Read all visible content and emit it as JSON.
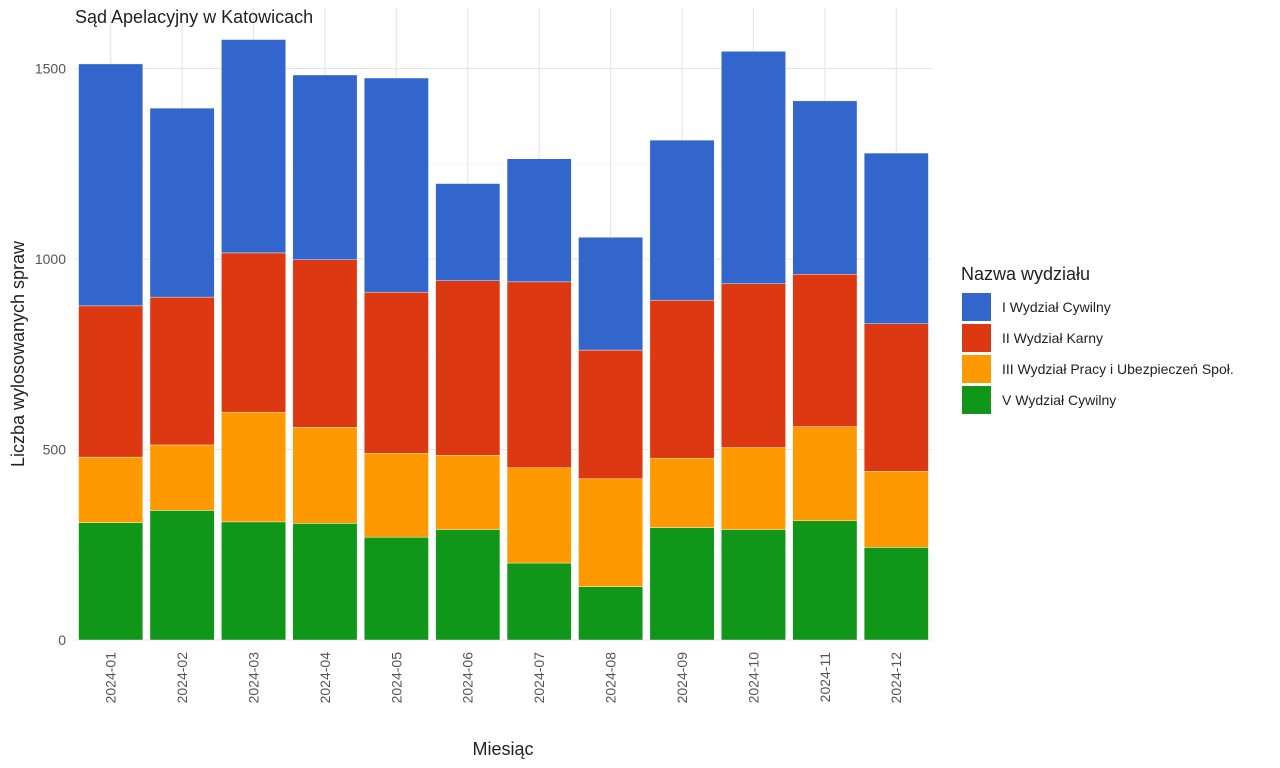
{
  "chart_data": {
    "type": "bar",
    "stacked": true,
    "title": "Sąd Apelacyjny w Katowicach",
    "xlabel": "Miesiąc",
    "ylabel": "Liczba wylosowanych spraw",
    "ylim": [
      0,
      1600
    ],
    "yticks": [
      0,
      500,
      1000,
      1500
    ],
    "grid": true,
    "categories": [
      "2024-01",
      "2024-02",
      "2024-03",
      "2024-04",
      "2024-05",
      "2024-06",
      "2024-07",
      "2024-08",
      "2024-09",
      "2024-10",
      "2024-11",
      "2024-12"
    ],
    "legend": {
      "title": "Nazwa wydziału",
      "position": "right"
    },
    "series": [
      {
        "name": "V Wydział Cywilny",
        "color": "#109618",
        "values": [
          308,
          340,
          310,
          306,
          270,
          290,
          202,
          140,
          295,
          290,
          313,
          243
        ]
      },
      {
        "name": "III Wydział Pracy i Ubezpieczeń Społ.",
        "color": "#ff9900",
        "values": [
          172,
          172,
          288,
          252,
          220,
          195,
          250,
          283,
          182,
          215,
          247,
          200
        ]
      },
      {
        "name": "II Wydział Karny",
        "color": "#dc3912",
        "values": [
          397,
          388,
          418,
          440,
          423,
          458,
          488,
          338,
          415,
          430,
          400,
          387
        ]
      },
      {
        "name": "I Wydział Cywilny",
        "color": "#3366cc",
        "values": [
          635,
          496,
          560,
          485,
          562,
          255,
          323,
          296,
          420,
          610,
          455,
          448
        ]
      }
    ],
    "legend_order": [
      "I Wydział Cywilny",
      "II Wydział Karny",
      "III Wydział Pracy i Ubezpieczeń Społ.",
      "V Wydział Cywilny"
    ]
  }
}
